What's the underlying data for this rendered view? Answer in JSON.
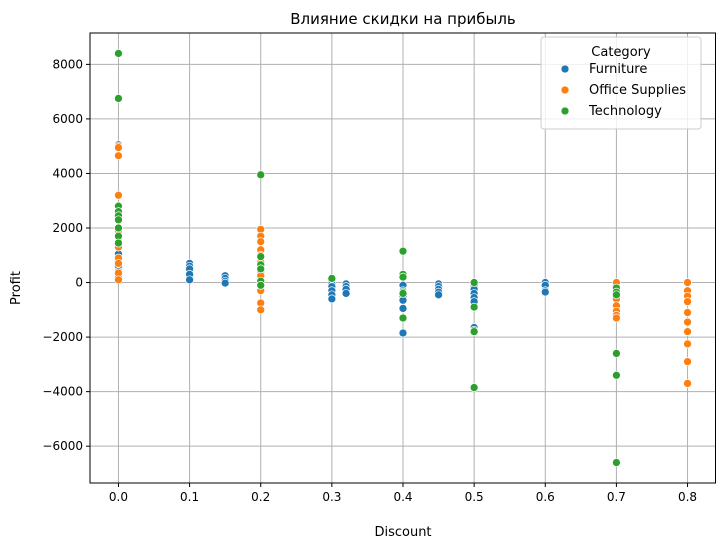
{
  "chart_data": {
    "type": "scatter",
    "title": "Влияние скидки на прибыль",
    "xlabel": "Discount",
    "ylabel": "Profit",
    "xlim": [
      -0.04,
      0.84
    ],
    "ylim": [
      -7350,
      9150
    ],
    "xticks": [
      "0.0",
      "0.1",
      "0.2",
      "0.3",
      "0.4",
      "0.5",
      "0.6",
      "0.7",
      "0.8"
    ],
    "xtick_values": [
      0.0,
      0.1,
      0.2,
      0.3,
      0.4,
      0.5,
      0.6,
      0.7,
      0.8
    ],
    "yticks": [
      "−6000",
      "−4000",
      "−2000",
      "0",
      "2000",
      "4000",
      "6000",
      "8000"
    ],
    "ytick_values": [
      -6000,
      -4000,
      -2000,
      0,
      2000,
      4000,
      6000,
      8000
    ],
    "grid": true,
    "legend_title": "Category",
    "legend_position": "top-right",
    "series": [
      {
        "name": "Furniture",
        "color": "#1f77b4",
        "points": [
          [
            0.0,
            5050
          ],
          [
            0.0,
            1050
          ],
          [
            0.0,
            800
          ],
          [
            0.0,
            600
          ],
          [
            0.0,
            400
          ],
          [
            0.0,
            200
          ],
          [
            0.1,
            700
          ],
          [
            0.1,
            600
          ],
          [
            0.1,
            500
          ],
          [
            0.1,
            300
          ],
          [
            0.1,
            100
          ],
          [
            0.15,
            250
          ],
          [
            0.15,
            150
          ],
          [
            0.15,
            50
          ],
          [
            0.15,
            -20
          ],
          [
            0.3,
            150
          ],
          [
            0.3,
            50
          ],
          [
            0.3,
            -50
          ],
          [
            0.3,
            -150
          ],
          [
            0.3,
            -300
          ],
          [
            0.3,
            -450
          ],
          [
            0.3,
            -600
          ],
          [
            0.32,
            -50
          ],
          [
            0.32,
            -150
          ],
          [
            0.32,
            -250
          ],
          [
            0.32,
            -400
          ],
          [
            0.4,
            -100
          ],
          [
            0.4,
            -300
          ],
          [
            0.4,
            -500
          ],
          [
            0.4,
            -650
          ],
          [
            0.4,
            -950
          ],
          [
            0.4,
            -1850
          ],
          [
            0.45,
            -50
          ],
          [
            0.45,
            -150
          ],
          [
            0.45,
            -250
          ],
          [
            0.45,
            -350
          ],
          [
            0.45,
            -450
          ],
          [
            0.5,
            -100
          ],
          [
            0.5,
            -250
          ],
          [
            0.5,
            -400
          ],
          [
            0.5,
            -550
          ],
          [
            0.5,
            -700
          ],
          [
            0.5,
            -1650
          ],
          [
            0.5,
            -1750
          ],
          [
            0.6,
            0
          ],
          [
            0.6,
            -100
          ],
          [
            0.6,
            -300
          ],
          [
            0.6,
            -350
          ],
          [
            0.7,
            -100
          ],
          [
            0.7,
            -300
          ],
          [
            0.7,
            -500
          ]
        ]
      },
      {
        "name": "Office Supplies",
        "color": "#ff7f0e",
        "points": [
          [
            0.0,
            5000
          ],
          [
            0.0,
            4950
          ],
          [
            0.0,
            4650
          ],
          [
            0.0,
            3200
          ],
          [
            0.0,
            1900
          ],
          [
            0.0,
            1500
          ],
          [
            0.0,
            1300
          ],
          [
            0.0,
            900
          ],
          [
            0.0,
            700
          ],
          [
            0.0,
            350
          ],
          [
            0.0,
            100
          ],
          [
            0.2,
            1950
          ],
          [
            0.2,
            1700
          ],
          [
            0.2,
            1500
          ],
          [
            0.2,
            1200
          ],
          [
            0.2,
            1000
          ],
          [
            0.2,
            750
          ],
          [
            0.2,
            600
          ],
          [
            0.2,
            400
          ],
          [
            0.2,
            250
          ],
          [
            0.2,
            -300
          ],
          [
            0.2,
            -750
          ],
          [
            0.2,
            -1000
          ],
          [
            0.7,
            0
          ],
          [
            0.7,
            -400
          ],
          [
            0.7,
            -600
          ],
          [
            0.7,
            -850
          ],
          [
            0.7,
            -1050
          ],
          [
            0.7,
            -1200
          ],
          [
            0.7,
            -1300
          ],
          [
            0.8,
            0
          ],
          [
            0.8,
            -300
          ],
          [
            0.8,
            -500
          ],
          [
            0.8,
            -700
          ],
          [
            0.8,
            -1100
          ],
          [
            0.8,
            -1450
          ],
          [
            0.8,
            -1800
          ],
          [
            0.8,
            -2250
          ],
          [
            0.8,
            -2900
          ],
          [
            0.8,
            -3700
          ]
        ]
      },
      {
        "name": "Technology",
        "color": "#2ca02c",
        "points": [
          [
            0.0,
            8400
          ],
          [
            0.0,
            6750
          ],
          [
            0.0,
            2800
          ],
          [
            0.0,
            2600
          ],
          [
            0.0,
            2450
          ],
          [
            0.0,
            2300
          ],
          [
            0.0,
            2000
          ],
          [
            0.0,
            1700
          ],
          [
            0.0,
            1450
          ],
          [
            0.2,
            3950
          ],
          [
            0.2,
            950
          ],
          [
            0.2,
            650
          ],
          [
            0.2,
            500
          ],
          [
            0.2,
            50
          ],
          [
            0.2,
            -100
          ],
          [
            0.3,
            150
          ],
          [
            0.4,
            1150
          ],
          [
            0.4,
            300
          ],
          [
            0.4,
            200
          ],
          [
            0.4,
            -350
          ],
          [
            0.4,
            -400
          ],
          [
            0.4,
            -1300
          ],
          [
            0.5,
            0
          ],
          [
            0.5,
            -900
          ],
          [
            0.5,
            -1800
          ],
          [
            0.5,
            -3850
          ],
          [
            0.7,
            -200
          ],
          [
            0.7,
            -350
          ],
          [
            0.7,
            -450
          ],
          [
            0.7,
            -2600
          ],
          [
            0.7,
            -3400
          ],
          [
            0.7,
            -6600
          ]
        ]
      }
    ]
  }
}
